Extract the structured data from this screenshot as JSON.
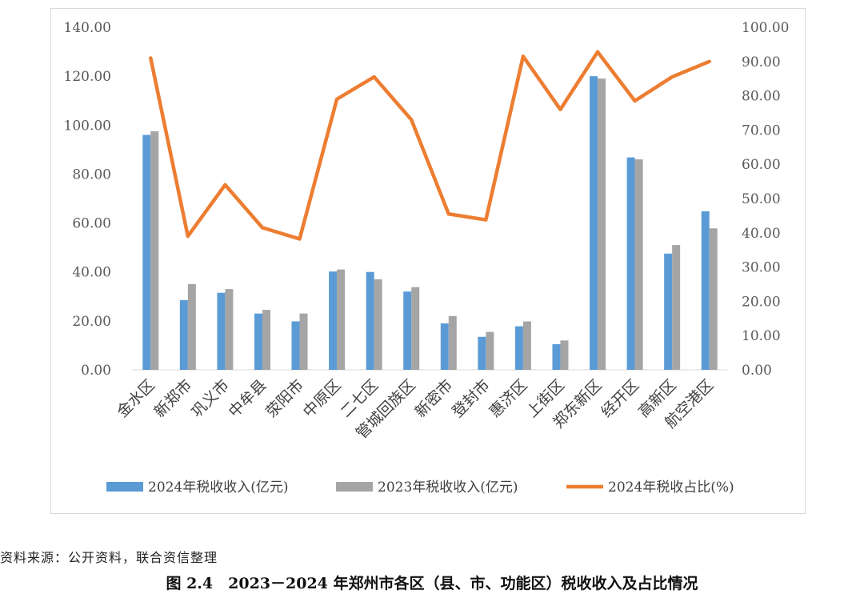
{
  "chart_data": {
    "type": "bar",
    "categories": [
      "金水区",
      "新郑市",
      "巩义市",
      "中牟县",
      "荥阳市",
      "中原区",
      "二七区",
      "管城回族区",
      "新密市",
      "登封市",
      "惠济区",
      "上街区",
      "郑东新区",
      "经开区",
      "高新区",
      "航空港区"
    ],
    "series": [
      {
        "name": "2024年税收收入(亿元)",
        "type": "bar",
        "axis": "left",
        "color": "#5B9BD5",
        "values": [
          96.0,
          28.5,
          31.5,
          23.0,
          19.8,
          40.2,
          40.0,
          32.0,
          19.0,
          13.5,
          17.8,
          10.5,
          120.0,
          86.8,
          47.5,
          64.8
        ]
      },
      {
        "name": "2023年税收收入(亿元)",
        "type": "bar",
        "axis": "left",
        "color": "#A5A5A5",
        "values": [
          97.5,
          35.0,
          33.0,
          24.5,
          23.0,
          41.0,
          37.0,
          33.8,
          22.0,
          15.5,
          19.8,
          12.0,
          119.0,
          86.0,
          51.0,
          57.8
        ]
      },
      {
        "name": "2024年税收占比(%)",
        "type": "line",
        "axis": "right",
        "color": "#ED7D31",
        "values": [
          91.0,
          39.0,
          54.0,
          41.5,
          38.2,
          79.0,
          85.5,
          73.0,
          45.5,
          43.8,
          91.5,
          76.0,
          92.8,
          78.5,
          85.5,
          90.0
        ]
      }
    ],
    "y_left": {
      "min": 0,
      "max": 140,
      "step": 20,
      "ticks": [
        "0.00",
        "20.00",
        "40.00",
        "60.00",
        "80.00",
        "100.00",
        "120.00",
        "140.00"
      ]
    },
    "y_right": {
      "min": 0,
      "max": 100,
      "step": 10,
      "ticks": [
        "0.00",
        "10.00",
        "20.00",
        "30.00",
        "40.00",
        "50.00",
        "60.00",
        "70.00",
        "80.00",
        "90.00",
        "100.00"
      ]
    },
    "grid": false,
    "legend_position": "bottom"
  },
  "footer": {
    "source": "资料来源：公开资料，联合资信整理",
    "caption": "图 2.4　2023－2024 年郑州市各区（县、市、功能区）税收收入及占比情况"
  }
}
